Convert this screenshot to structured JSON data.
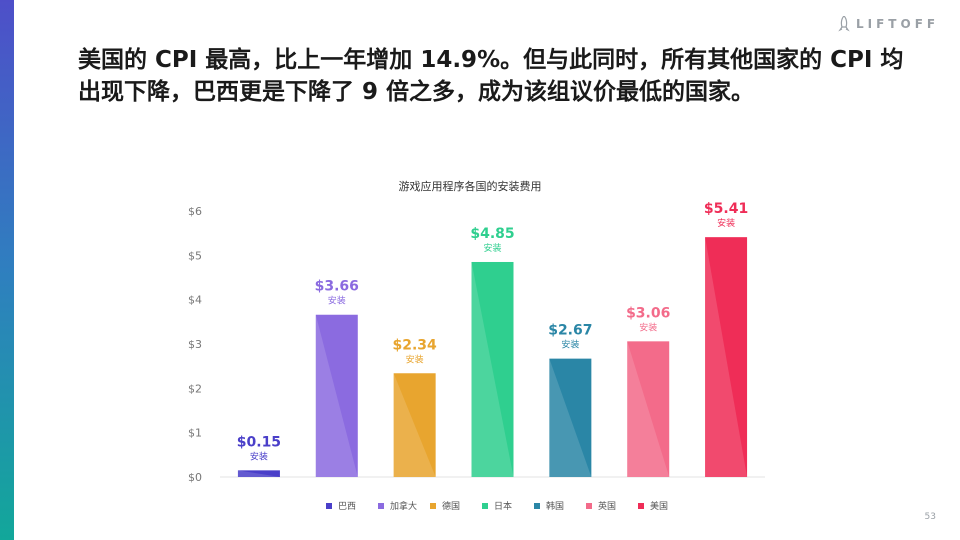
{
  "brand": {
    "name": "LIFTOFF",
    "logo_icon": "rocket-icon"
  },
  "headline": "美国的 CPI 最高，比上一年增加 14.9%。但与此同时，所有其他国家的 CPI 均出现下降，巴西更是下降了 9 倍之多，成为该组议价最低的国家。",
  "page_number": "53",
  "chart_data": {
    "type": "bar",
    "title": "游戏应用程序各国的安装费用",
    "categories": [
      "巴西",
      "加拿大",
      "德国",
      "日本",
      "韩国",
      "英国",
      "美国"
    ],
    "values": [
      0.15,
      3.66,
      2.34,
      4.85,
      2.67,
      3.06,
      5.41
    ],
    "value_labels": [
      "$0.15",
      "$3.66",
      "$2.34",
      "$4.85",
      "$2.67",
      "$3.06",
      "$5.41"
    ],
    "unit_label": "安装",
    "colors": [
      "#4a3fc9",
      "#8b6be0",
      "#e8a52f",
      "#2fcf8f",
      "#2a86a6",
      "#f36b8a",
      "#ef2d57"
    ],
    "y_ticks": [
      "$0",
      "$1",
      "$2",
      "$3",
      "$4",
      "$5",
      "$6"
    ],
    "ylim": [
      0,
      6
    ],
    "grid": false,
    "legend": "bottom"
  }
}
